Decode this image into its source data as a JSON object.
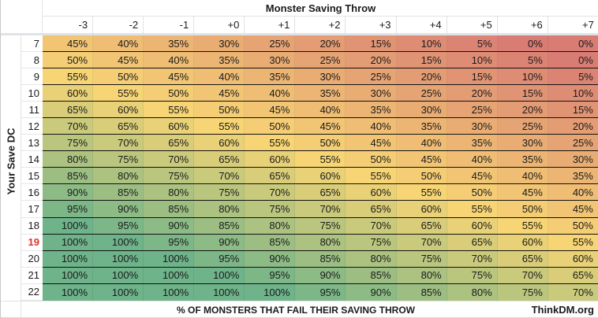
{
  "title": "Monster Saving Throw",
  "y_axis_label": "Your Save DC",
  "footer_caption": "% OF MONSTERS THAT FAIL THEIR SAVING THROW",
  "credit": "ThinkDM.org",
  "highlighted_row": "19",
  "highlight_color": "#e0342b",
  "scale_colors": {
    "low": "#d87c74",
    "mid": "#f7d574",
    "high": "#6eb38a",
    "mid_point": 55
  },
  "columns": [
    "-3",
    "-2",
    "-1",
    "+0",
    "+1",
    "+2",
    "+3",
    "+4",
    "+5",
    "+6",
    "+7"
  ],
  "rows": [
    {
      "dc": "7",
      "values": [
        "45%",
        "40%",
        "35%",
        "30%",
        "25%",
        "20%",
        "15%",
        "10%",
        "5%",
        "0%",
        "0%"
      ]
    },
    {
      "dc": "8",
      "values": [
        "50%",
        "45%",
        "40%",
        "35%",
        "30%",
        "25%",
        "20%",
        "15%",
        "10%",
        "5%",
        "0%"
      ]
    },
    {
      "dc": "9",
      "values": [
        "55%",
        "50%",
        "45%",
        "40%",
        "35%",
        "30%",
        "25%",
        "20%",
        "15%",
        "10%",
        "5%"
      ]
    },
    {
      "dc": "10",
      "values": [
        "60%",
        "55%",
        "50%",
        "45%",
        "40%",
        "35%",
        "30%",
        "25%",
        "20%",
        "15%",
        "10%"
      ]
    },
    {
      "dc": "11",
      "values": [
        "65%",
        "60%",
        "55%",
        "50%",
        "45%",
        "40%",
        "35%",
        "30%",
        "25%",
        "20%",
        "15%"
      ]
    },
    {
      "dc": "12",
      "values": [
        "70%",
        "65%",
        "60%",
        "55%",
        "50%",
        "45%",
        "40%",
        "35%",
        "30%",
        "25%",
        "20%"
      ]
    },
    {
      "dc": "13",
      "values": [
        "75%",
        "70%",
        "65%",
        "60%",
        "55%",
        "50%",
        "45%",
        "40%",
        "35%",
        "30%",
        "25%"
      ]
    },
    {
      "dc": "14",
      "values": [
        "80%",
        "75%",
        "70%",
        "65%",
        "60%",
        "55%",
        "50%",
        "45%",
        "40%",
        "35%",
        "30%"
      ]
    },
    {
      "dc": "15",
      "values": [
        "85%",
        "80%",
        "75%",
        "70%",
        "65%",
        "60%",
        "55%",
        "50%",
        "45%",
        "40%",
        "35%"
      ]
    },
    {
      "dc": "16",
      "values": [
        "90%",
        "85%",
        "80%",
        "75%",
        "70%",
        "65%",
        "60%",
        "55%",
        "50%",
        "45%",
        "40%"
      ]
    },
    {
      "dc": "17",
      "values": [
        "95%",
        "90%",
        "85%",
        "80%",
        "75%",
        "70%",
        "65%",
        "60%",
        "55%",
        "50%",
        "45%"
      ]
    },
    {
      "dc": "18",
      "values": [
        "100%",
        "95%",
        "90%",
        "85%",
        "80%",
        "75%",
        "70%",
        "65%",
        "60%",
        "55%",
        "50%"
      ]
    },
    {
      "dc": "19",
      "values": [
        "100%",
        "100%",
        "95%",
        "90%",
        "85%",
        "80%",
        "75%",
        "70%",
        "65%",
        "60%",
        "55%"
      ]
    },
    {
      "dc": "20",
      "values": [
        "100%",
        "100%",
        "100%",
        "95%",
        "90%",
        "85%",
        "80%",
        "75%",
        "70%",
        "65%",
        "60%"
      ]
    },
    {
      "dc": "21",
      "values": [
        "100%",
        "100%",
        "100%",
        "100%",
        "95%",
        "90%",
        "85%",
        "80%",
        "75%",
        "70%",
        "65%"
      ]
    },
    {
      "dc": "22",
      "values": [
        "100%",
        "100%",
        "100%",
        "100%",
        "100%",
        "95%",
        "90%",
        "85%",
        "80%",
        "75%",
        "70%"
      ]
    }
  ],
  "chart_data": {
    "type": "heatmap",
    "title": "Monster Saving Throw",
    "xlabel": "Monster Saving Throw",
    "ylabel": "Your Save DC",
    "caption": "% OF MONSTERS THAT FAIL THEIR SAVING THROW",
    "x": [
      "-3",
      "-2",
      "-1",
      "+0",
      "+1",
      "+2",
      "+3",
      "+4",
      "+5",
      "+6",
      "+7"
    ],
    "y": [
      7,
      8,
      9,
      10,
      11,
      12,
      13,
      14,
      15,
      16,
      17,
      18,
      19,
      20,
      21,
      22
    ],
    "values": [
      [
        45,
        40,
        35,
        30,
        25,
        20,
        15,
        10,
        5,
        0,
        0
      ],
      [
        50,
        45,
        40,
        35,
        30,
        25,
        20,
        15,
        10,
        5,
        0
      ],
      [
        55,
        50,
        45,
        40,
        35,
        30,
        25,
        20,
        15,
        10,
        5
      ],
      [
        60,
        55,
        50,
        45,
        40,
        35,
        30,
        25,
        20,
        15,
        10
      ],
      [
        65,
        60,
        55,
        50,
        45,
        40,
        35,
        30,
        25,
        20,
        15
      ],
      [
        70,
        65,
        60,
        55,
        50,
        45,
        40,
        35,
        30,
        25,
        20
      ],
      [
        75,
        70,
        65,
        60,
        55,
        50,
        45,
        40,
        35,
        30,
        25
      ],
      [
        80,
        75,
        70,
        65,
        60,
        55,
        50,
        45,
        40,
        35,
        30
      ],
      [
        85,
        80,
        75,
        70,
        65,
        60,
        55,
        50,
        45,
        40,
        35
      ],
      [
        90,
        85,
        80,
        75,
        70,
        65,
        60,
        55,
        50,
        45,
        40
      ],
      [
        95,
        90,
        85,
        80,
        75,
        70,
        65,
        60,
        55,
        50,
        45
      ],
      [
        100,
        95,
        90,
        85,
        80,
        75,
        70,
        65,
        60,
        55,
        50
      ],
      [
        100,
        100,
        95,
        90,
        85,
        80,
        75,
        70,
        65,
        60,
        55
      ],
      [
        100,
        100,
        100,
        95,
        90,
        85,
        80,
        75,
        70,
        65,
        60
      ],
      [
        100,
        100,
        100,
        100,
        95,
        90,
        85,
        80,
        75,
        70,
        65
      ],
      [
        100,
        100,
        100,
        100,
        100,
        95,
        90,
        85,
        80,
        75,
        70
      ]
    ],
    "unit": "%",
    "color_scale": "red (0%) → yellow (~55%) → green (100%)",
    "highlight": {
      "row": 19,
      "color": "#e0342b"
    },
    "annotation": "ThinkDM.org"
  }
}
